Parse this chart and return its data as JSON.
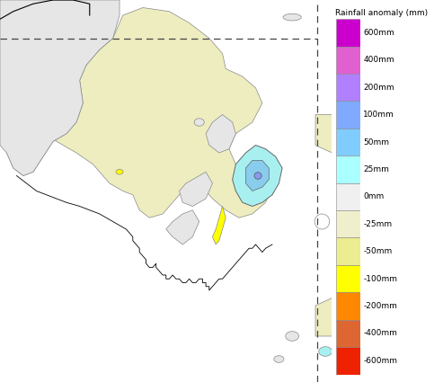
{
  "colorbar_title": "Rainfall anomaly (mm)",
  "colorbar_labels": [
    "600mm",
    "400mm",
    "200mm",
    "100mm",
    "50mm",
    "25mm",
    "0mm",
    "-25mm",
    "-50mm",
    "-100mm",
    "-200mm",
    "-400mm",
    "-600mm"
  ],
  "colorbar_colors": [
    "#CC00CC",
    "#E060D0",
    "#B080FF",
    "#80AAFF",
    "#80CCFF",
    "#AAFFFF",
    "#F0F0F0",
    "#F0EFCC",
    "#ECEC90",
    "#FFFF00",
    "#FF8800",
    "#DD6633",
    "#EE2200"
  ],
  "map_bg": "#E6E6E6",
  "map_yellow": "#EEEDC0",
  "map_yellow2": "#F5F59A",
  "map_yellow_bright": "#FFFF00",
  "map_gray": "#E0E0E0",
  "map_cyan_light": "#A8F0F0",
  "map_cyan": "#88CCEE",
  "map_blue": "#8899EE",
  "fig_width": 4.83,
  "fig_height": 4.25,
  "dpi": 100
}
